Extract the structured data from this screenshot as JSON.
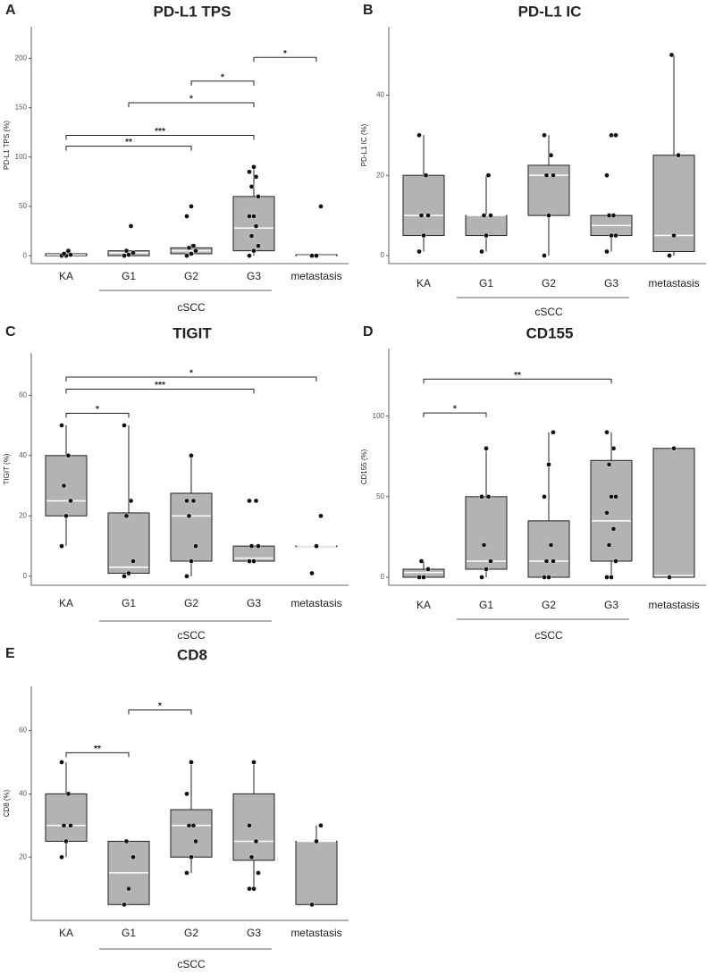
{
  "chart_data": [
    {
      "type": "box",
      "panel": "A",
      "title": "PD-L1 TPS",
      "ylabel": "PD-L1 TPS (%)",
      "categories": [
        "KA",
        "G1",
        "G2",
        "G3",
        "metastasis"
      ],
      "group_label": "cSCC",
      "ylim": [
        -8,
        232
      ],
      "yticks": [
        0,
        50,
        100,
        150,
        200
      ],
      "color": "#b3b3b3",
      "boxes": [
        {
          "min": 0,
          "q1": 0,
          "median": 1,
          "q3": 2,
          "max": 5,
          "points": [
            0,
            0,
            1,
            2,
            5
          ]
        },
        {
          "min": 0,
          "q1": 0,
          "median": 3,
          "q3": 5,
          "max": 5,
          "points": [
            0,
            1,
            3,
            5,
            30
          ]
        },
        {
          "min": 0,
          "q1": 2,
          "median": 5,
          "q3": 8,
          "max": 12,
          "points": [
            0,
            2,
            5,
            8,
            10,
            40,
            50
          ]
        },
        {
          "min": 0,
          "q1": 5,
          "median": 28,
          "q3": 60,
          "max": 90,
          "points": [
            0,
            5,
            10,
            20,
            30,
            40,
            40,
            60,
            70,
            80,
            85,
            90
          ]
        },
        {
          "min": 0,
          "q1": 0,
          "median": 0,
          "q3": 1,
          "max": 1,
          "points": [
            0,
            0,
            50
          ]
        }
      ],
      "brackets": [
        {
          "from": "KA",
          "to": "G2",
          "y": 111,
          "label": "**"
        },
        {
          "from": "KA",
          "to": "G3",
          "y": 122,
          "label": "***"
        },
        {
          "from": "G1",
          "to": "G3",
          "y": 155,
          "label": "*"
        },
        {
          "from": "G2",
          "to": "G3",
          "y": 177,
          "label": "*"
        },
        {
          "from": "G3",
          "to": "metastasis",
          "y": 201,
          "label": "*"
        }
      ]
    },
    {
      "type": "box",
      "panel": "B",
      "title": "PD-L1 IC",
      "ylabel": "PD-L1 IC (%)",
      "categories": [
        "KA",
        "G1",
        "G2",
        "G3",
        "metastasis"
      ],
      "group_label": "cSCC",
      "ylim": [
        -2,
        57
      ],
      "yticks": [
        0,
        20,
        40
      ],
      "color": "#b3b3b3",
      "boxes": [
        {
          "min": 1,
          "q1": 5,
          "median": 10,
          "q3": 20,
          "max": 30,
          "points": [
            1,
            5,
            10,
            10,
            20,
            30
          ]
        },
        {
          "min": 1,
          "q1": 5,
          "median": 10,
          "q3": 10,
          "max": 20,
          "points": [
            1,
            5,
            10,
            10,
            20
          ]
        },
        {
          "min": 0,
          "q1": 10,
          "median": 20,
          "q3": 22.5,
          "max": 30,
          "points": [
            0,
            10,
            20,
            20,
            25,
            30
          ]
        },
        {
          "min": 1,
          "q1": 5,
          "median": 7.5,
          "q3": 10,
          "max": 10,
          "points": [
            1,
            5,
            5,
            10,
            10,
            20,
            30,
            30
          ]
        },
        {
          "min": 0,
          "q1": 1,
          "median": 5,
          "q3": 25,
          "max": 50,
          "points": [
            0,
            5,
            25,
            50
          ]
        }
      ],
      "brackets": []
    },
    {
      "type": "box",
      "panel": "C",
      "title": "TIGIT",
      "ylabel": "TIGIT (%)",
      "categories": [
        "KA",
        "G1",
        "G2",
        "G3",
        "metastasis"
      ],
      "group_label": "cSCC",
      "ylim": [
        -3,
        74
      ],
      "yticks": [
        0,
        20,
        40,
        60
      ],
      "color": "#b3b3b3",
      "boxes": [
        {
          "min": 10,
          "q1": 20,
          "median": 25,
          "q3": 40,
          "max": 50,
          "points": [
            10,
            20,
            25,
            30,
            40,
            50
          ]
        },
        {
          "min": 0,
          "q1": 1,
          "median": 3,
          "q3": 21,
          "max": 50,
          "points": [
            0,
            1,
            5,
            20,
            25,
            50
          ]
        },
        {
          "min": 0,
          "q1": 5,
          "median": 20,
          "q3": 27.5,
          "max": 40,
          "points": [
            0,
            5,
            10,
            20,
            25,
            25,
            40
          ]
        },
        {
          "min": 5,
          "q1": 5,
          "median": 6,
          "q3": 10,
          "max": 10,
          "points": [
            5,
            5,
            10,
            10,
            25,
            25
          ]
        },
        {
          "min": 10,
          "q1": 10,
          "median": 10,
          "q3": 10,
          "max": 10,
          "points": [
            1,
            10,
            20
          ]
        }
      ],
      "brackets": [
        {
          "from": "KA",
          "to": "G1",
          "y": 54,
          "label": "*"
        },
        {
          "from": "KA",
          "to": "G3",
          "y": 62,
          "label": "***"
        },
        {
          "from": "KA",
          "to": "metastasis",
          "y": 66,
          "label": "*"
        }
      ]
    },
    {
      "type": "box",
      "panel": "D",
      "title": "CD155",
      "ylabel": "CD155 (%)",
      "categories": [
        "KA",
        "G1",
        "G2",
        "G3",
        "metastasis"
      ],
      "group_label": "cSCC",
      "ylim": [
        -5,
        142
      ],
      "yticks": [
        0,
        50,
        100
      ],
      "color": "#b3b3b3",
      "boxes": [
        {
          "min": 0,
          "q1": 0,
          "median": 3,
          "q3": 5,
          "max": 10,
          "points": [
            0,
            0,
            5,
            10
          ]
        },
        {
          "min": 0,
          "q1": 5,
          "median": 10,
          "q3": 50,
          "max": 80,
          "points": [
            0,
            5,
            10,
            20,
            50,
            50,
            80
          ]
        },
        {
          "min": 0,
          "q1": 0,
          "median": 10,
          "q3": 35,
          "max": 90,
          "points": [
            0,
            0,
            10,
            10,
            20,
            50,
            70,
            90
          ]
        },
        {
          "min": 0,
          "q1": 10,
          "median": 35,
          "q3": 72.5,
          "max": 90,
          "points": [
            0,
            0,
            10,
            20,
            30,
            40,
            50,
            50,
            70,
            80,
            90
          ]
        },
        {
          "min": 0,
          "q1": 0,
          "median": 1,
          "q3": 80,
          "max": 80,
          "points": [
            0,
            80
          ]
        }
      ],
      "brackets": [
        {
          "from": "KA",
          "to": "G1",
          "y": 102,
          "label": "*"
        },
        {
          "from": "KA",
          "to": "G3",
          "y": 123,
          "label": "**"
        }
      ]
    },
    {
      "type": "box",
      "panel": "E",
      "title": "CD8",
      "ylabel": "CD8 (%)",
      "categories": [
        "KA",
        "G1",
        "G2",
        "G3",
        "metastasis"
      ],
      "group_label": "cSCC",
      "ylim": [
        0,
        74
      ],
      "yticks": [
        20,
        40,
        60
      ],
      "color": "#b3b3b3",
      "boxes": [
        {
          "min": 20,
          "q1": 25,
          "median": 30,
          "q3": 40,
          "max": 50,
          "points": [
            20,
            25,
            30,
            30,
            40,
            50
          ]
        },
        {
          "min": 5,
          "q1": 5,
          "median": 15,
          "q3": 25,
          "max": 25,
          "points": [
            5,
            10,
            20,
            25
          ]
        },
        {
          "min": 15,
          "q1": 20,
          "median": 30,
          "q3": 35,
          "max": 50,
          "points": [
            15,
            20,
            25,
            30,
            30,
            40,
            50
          ]
        },
        {
          "min": 10,
          "q1": 19,
          "median": 25,
          "q3": 40,
          "max": 50,
          "points": [
            10,
            10,
            15,
            20,
            25,
            30,
            50
          ]
        },
        {
          "min": 5,
          "q1": 5,
          "median": 25,
          "q3": 25,
          "max": 30,
          "points": [
            5,
            25,
            30
          ]
        }
      ],
      "brackets": [
        {
          "from": "KA",
          "to": "G1",
          "y": 53,
          "label": "**"
        },
        {
          "from": "G1",
          "to": "G2",
          "y": 66.5,
          "label": "*"
        }
      ]
    }
  ]
}
